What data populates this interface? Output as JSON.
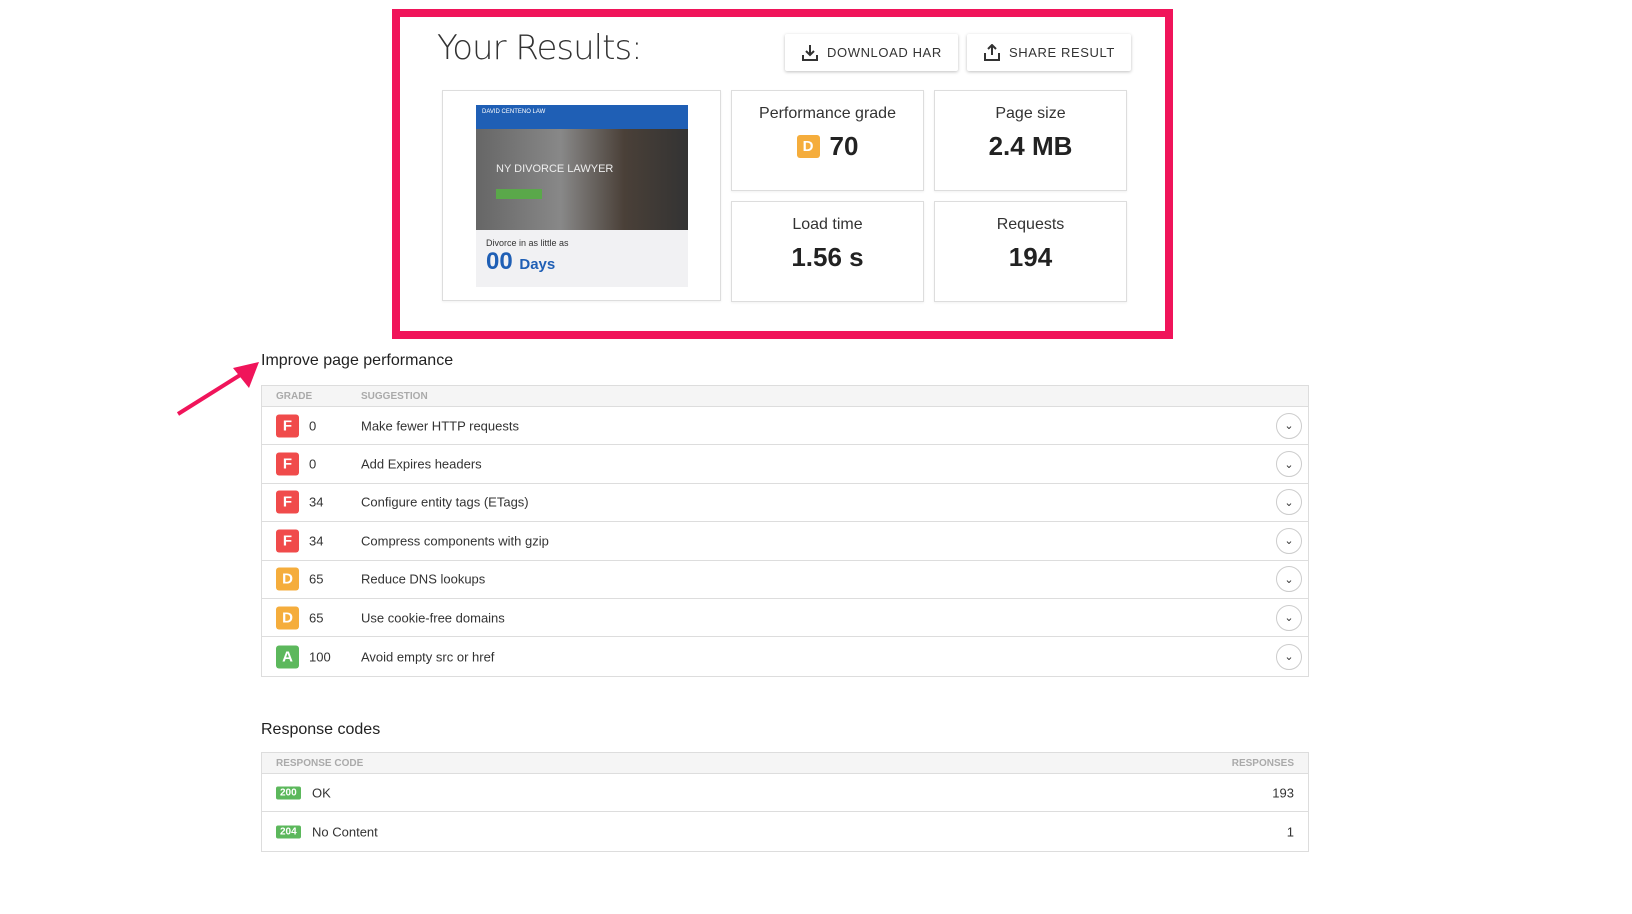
{
  "header": {
    "title": "Your Results:",
    "download_label": "DOWNLOAD HAR",
    "share_label": "SHARE RESULT"
  },
  "thumbnail": {
    "brand": "DAVID CENTENO LAW",
    "headline": "NY DIVORCE LAWYER",
    "tagline": "Divorce in as little as",
    "days_number": "00",
    "days_word": "Days"
  },
  "metrics": {
    "grade": {
      "label": "Performance grade",
      "letter": "D",
      "value": "70"
    },
    "size": {
      "label": "Page size",
      "value": "2.4 MB"
    },
    "load": {
      "label": "Load time",
      "value": "1.56 s"
    },
    "requests": {
      "label": "Requests",
      "value": "194"
    }
  },
  "colors": {
    "accent": "#f0145a",
    "F": "#f04b4b",
    "D": "#f5ad3c",
    "A": "#5cb85c"
  },
  "performance": {
    "title": "Improve page performance",
    "col_grade": "GRADE",
    "col_suggestion": "SUGGESTION",
    "rows": [
      {
        "grade": "F",
        "score": "0",
        "text": "Make fewer HTTP requests"
      },
      {
        "grade": "F",
        "score": "0",
        "text": "Add Expires headers"
      },
      {
        "grade": "F",
        "score": "34",
        "text": "Configure entity tags (ETags)"
      },
      {
        "grade": "F",
        "score": "34",
        "text": "Compress components with gzip"
      },
      {
        "grade": "D",
        "score": "65",
        "text": "Reduce DNS lookups"
      },
      {
        "grade": "D",
        "score": "65",
        "text": "Use cookie-free domains"
      },
      {
        "grade": "A",
        "score": "100",
        "text": "Avoid empty src or href"
      }
    ]
  },
  "responses": {
    "title": "Response codes",
    "col_code": "RESPONSE CODE",
    "col_count": "RESPONSES",
    "rows": [
      {
        "code": "200",
        "text": "OK",
        "count": "193"
      },
      {
        "code": "204",
        "text": "No Content",
        "count": "1"
      }
    ]
  }
}
